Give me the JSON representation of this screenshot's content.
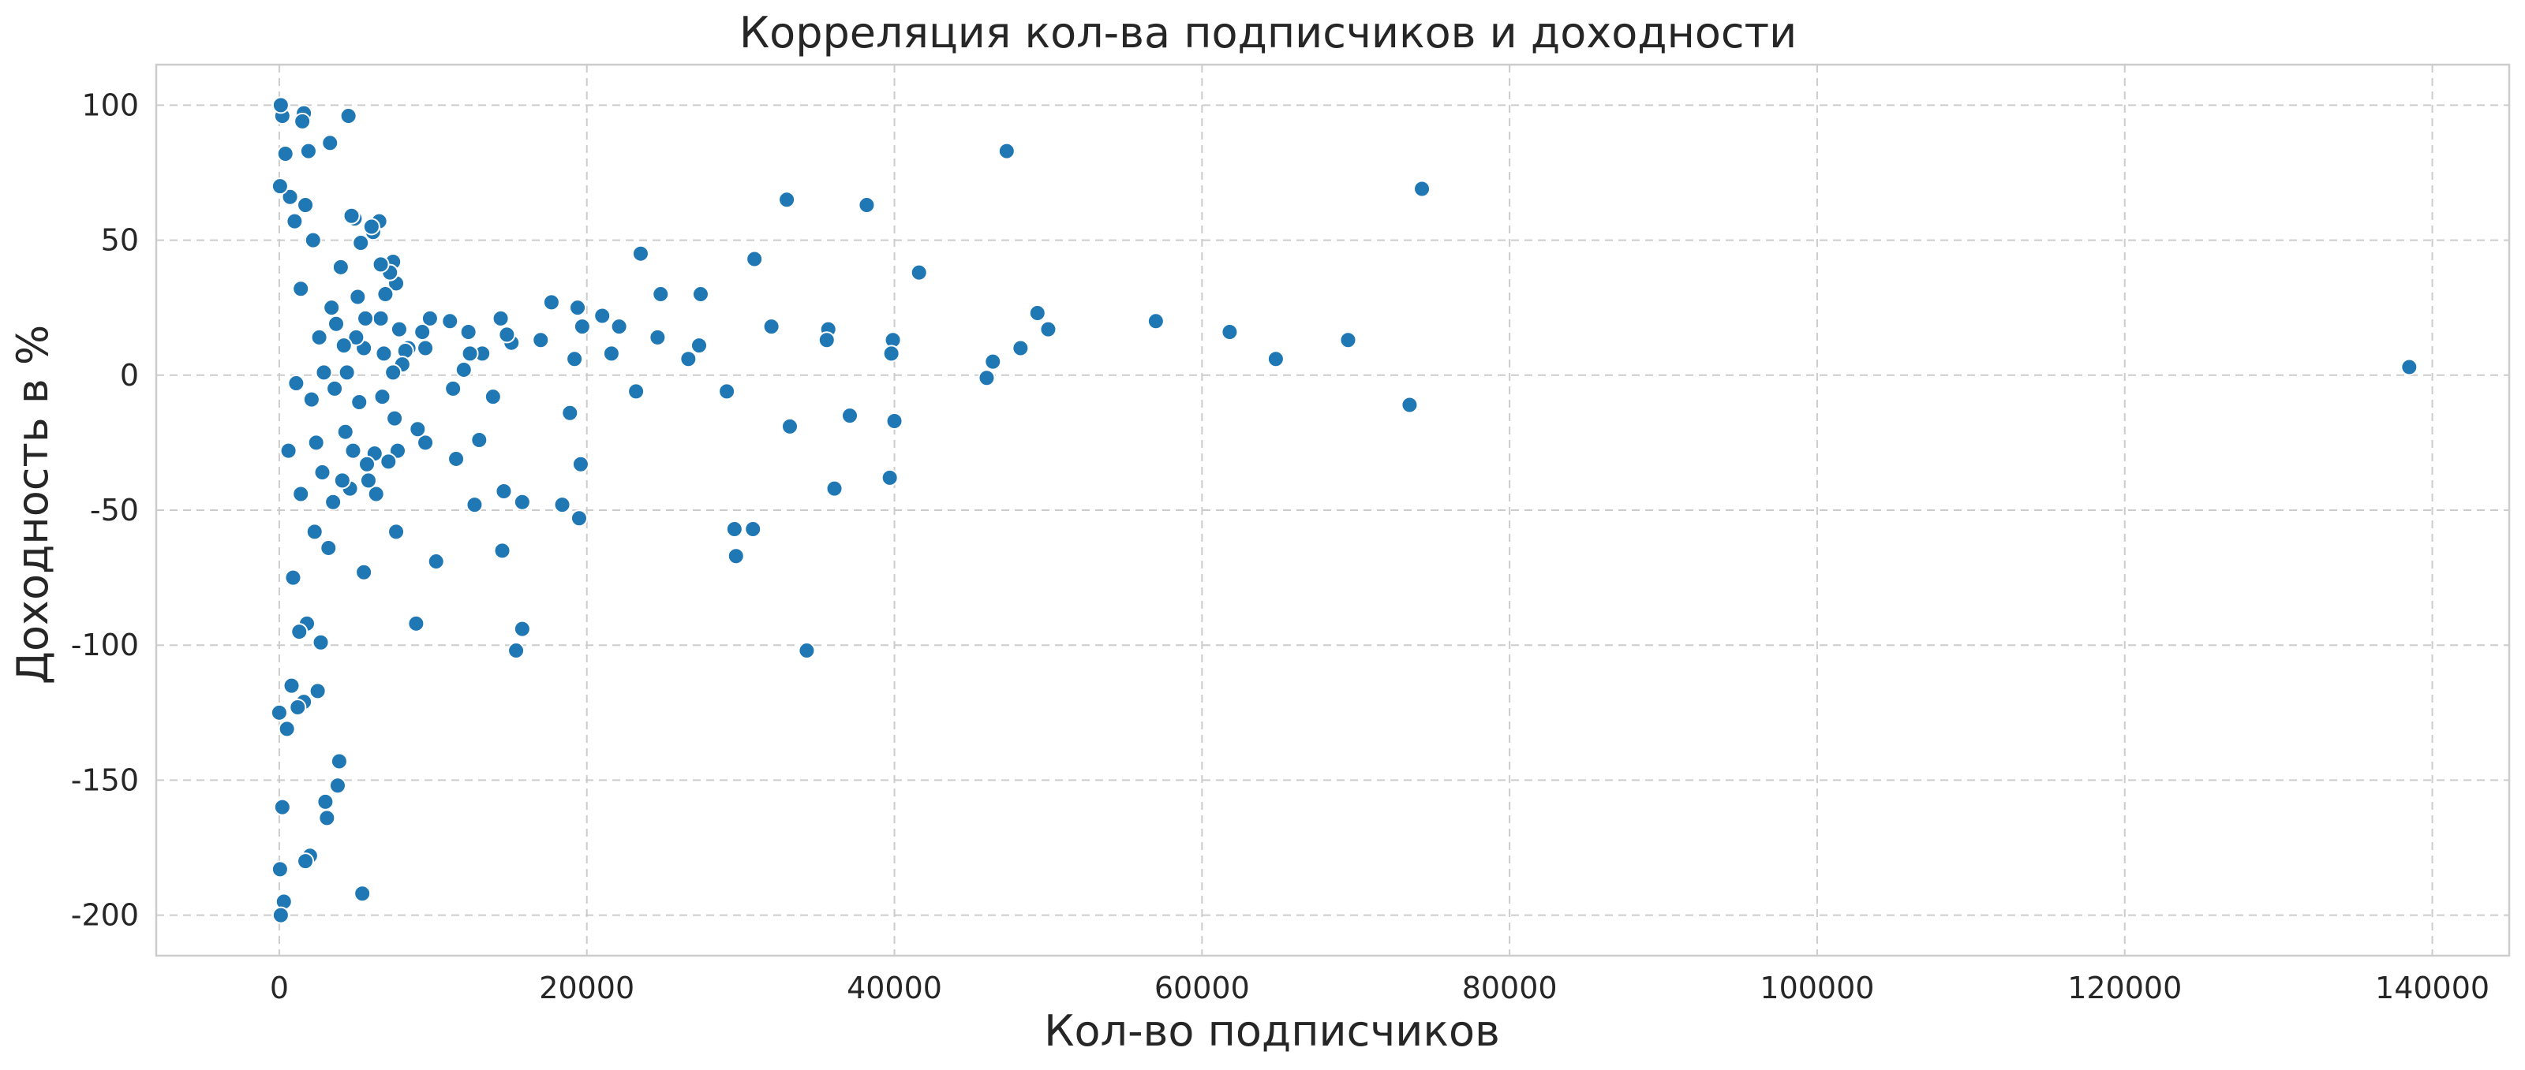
{
  "chart_data": {
    "type": "scatter",
    "title": "Корреляция кол-ва подписчиков и доходности",
    "xlabel": "Кол-во подписчиков",
    "ylabel": "Доходность в %",
    "xlim": [
      -8000,
      145000
    ],
    "ylim": [
      -215,
      115
    ],
    "x_ticks": [
      0,
      20000,
      40000,
      60000,
      80000,
      100000,
      120000,
      140000
    ],
    "x_tick_labels": [
      "0",
      "20000",
      "40000",
      "60000",
      "80000",
      "100000",
      "120000",
      "140000"
    ],
    "y_ticks": [
      100,
      50,
      0,
      -50,
      -100,
      -150,
      -200
    ],
    "y_tick_labels": [
      "100",
      "50",
      "0",
      "-50",
      "-100",
      "-150",
      "-200"
    ],
    "grid": true,
    "color": "#1f77b4",
    "series": [
      {
        "points": [
          [
            138500,
            3
          ],
          [
            74300,
            69
          ],
          [
            73500,
            -11
          ],
          [
            69500,
            13
          ],
          [
            64800,
            6
          ],
          [
            61800,
            16
          ],
          [
            57000,
            20
          ],
          [
            50000,
            17
          ],
          [
            49300,
            23
          ],
          [
            48200,
            10
          ],
          [
            47300,
            83
          ],
          [
            46400,
            5
          ],
          [
            46000,
            -1
          ],
          [
            41600,
            38
          ],
          [
            40000,
            -17
          ],
          [
            39900,
            13
          ],
          [
            39800,
            8
          ],
          [
            39700,
            -38
          ],
          [
            38200,
            63
          ],
          [
            37100,
            -15
          ],
          [
            36100,
            -42
          ],
          [
            35700,
            17
          ],
          [
            35600,
            13
          ],
          [
            34300,
            -102
          ],
          [
            33200,
            -19
          ],
          [
            33000,
            65
          ],
          [
            32000,
            18
          ],
          [
            30900,
            43
          ],
          [
            30800,
            -57
          ],
          [
            29700,
            -67
          ],
          [
            29600,
            -57
          ],
          [
            29100,
            -6
          ],
          [
            27400,
            30
          ],
          [
            27300,
            11
          ],
          [
            26600,
            6
          ],
          [
            24800,
            30
          ],
          [
            24600,
            14
          ],
          [
            23500,
            45
          ],
          [
            23200,
            -6
          ],
          [
            22100,
            18
          ],
          [
            21600,
            8
          ],
          [
            21000,
            22
          ],
          [
            19700,
            18
          ],
          [
            19600,
            -33
          ],
          [
            19500,
            -53
          ],
          [
            19400,
            25
          ],
          [
            19200,
            6
          ],
          [
            18900,
            -14
          ],
          [
            18400,
            -48
          ],
          [
            17700,
            27
          ],
          [
            17000,
            13
          ],
          [
            15800,
            -47
          ],
          [
            15800,
            -94
          ],
          [
            15400,
            -102
          ],
          [
            15100,
            12
          ],
          [
            14800,
            15
          ],
          [
            14600,
            -43
          ],
          [
            14500,
            -65
          ],
          [
            14400,
            21
          ],
          [
            13900,
            -8
          ],
          [
            13200,
            8
          ],
          [
            13000,
            -24
          ],
          [
            12700,
            -48
          ],
          [
            12400,
            8
          ],
          [
            12300,
            16
          ],
          [
            12000,
            2
          ],
          [
            11500,
            -31
          ],
          [
            11300,
            -5
          ],
          [
            11100,
            20
          ],
          [
            10200,
            -69
          ],
          [
            9800,
            21
          ],
          [
            9500,
            -25
          ],
          [
            9500,
            10
          ],
          [
            9300,
            16
          ],
          [
            9000,
            -20
          ],
          [
            8900,
            -92
          ],
          [
            8400,
            10
          ],
          [
            8200,
            9
          ],
          [
            8000,
            4
          ],
          [
            7800,
            17
          ],
          [
            7700,
            -28
          ],
          [
            7600,
            -58
          ],
          [
            7600,
            34
          ],
          [
            7500,
            -16
          ],
          [
            7400,
            42
          ],
          [
            7400,
            1
          ],
          [
            7200,
            38
          ],
          [
            7100,
            -32
          ],
          [
            6900,
            30
          ],
          [
            6800,
            8
          ],
          [
            6700,
            -8
          ],
          [
            6600,
            41
          ],
          [
            6600,
            21
          ],
          [
            6500,
            57
          ],
          [
            6300,
            -44
          ],
          [
            6200,
            -29
          ],
          [
            6100,
            53
          ],
          [
            6000,
            55
          ],
          [
            5800,
            -39
          ],
          [
            5700,
            -33
          ],
          [
            5600,
            21
          ],
          [
            5500,
            10
          ],
          [
            5500,
            -73
          ],
          [
            5400,
            -192
          ],
          [
            5300,
            49
          ],
          [
            5200,
            -10
          ],
          [
            5100,
            29
          ],
          [
            5000,
            14
          ],
          [
            4900,
            58
          ],
          [
            4800,
            -28
          ],
          [
            4700,
            59
          ],
          [
            4600,
            -42
          ],
          [
            4500,
            96
          ],
          [
            4400,
            1
          ],
          [
            4300,
            -21
          ],
          [
            4200,
            11
          ],
          [
            4100,
            -39
          ],
          [
            4000,
            40
          ],
          [
            3900,
            -143
          ],
          [
            3800,
            -152
          ],
          [
            3700,
            19
          ],
          [
            3600,
            -5
          ],
          [
            3500,
            -47
          ],
          [
            3400,
            25
          ],
          [
            3300,
            86
          ],
          [
            3200,
            -64
          ],
          [
            3100,
            -164
          ],
          [
            3000,
            -158
          ],
          [
            2900,
            1
          ],
          [
            2800,
            -36
          ],
          [
            2700,
            -99
          ],
          [
            2600,
            14
          ],
          [
            2500,
            -117
          ],
          [
            2400,
            -25
          ],
          [
            2300,
            -58
          ],
          [
            2200,
            50
          ],
          [
            2100,
            -9
          ],
          [
            2000,
            -178
          ],
          [
            1900,
            83
          ],
          [
            1800,
            -92
          ],
          [
            1700,
            63
          ],
          [
            1700,
            -180
          ],
          [
            1600,
            -121
          ],
          [
            1600,
            97
          ],
          [
            1500,
            94
          ],
          [
            1400,
            -44
          ],
          [
            1400,
            32
          ],
          [
            1300,
            -95
          ],
          [
            1200,
            -123
          ],
          [
            1100,
            -3
          ],
          [
            1000,
            57
          ],
          [
            900,
            -75
          ],
          [
            800,
            -115
          ],
          [
            700,
            66
          ],
          [
            600,
            -28
          ],
          [
            500,
            -131
          ],
          [
            400,
            82
          ],
          [
            300,
            -195
          ],
          [
            200,
            -160
          ],
          [
            200,
            96
          ],
          [
            100,
            100
          ],
          [
            100,
            -200
          ],
          [
            50,
            -183
          ],
          [
            50,
            70
          ],
          [
            0,
            -125
          ]
        ]
      }
    ]
  }
}
